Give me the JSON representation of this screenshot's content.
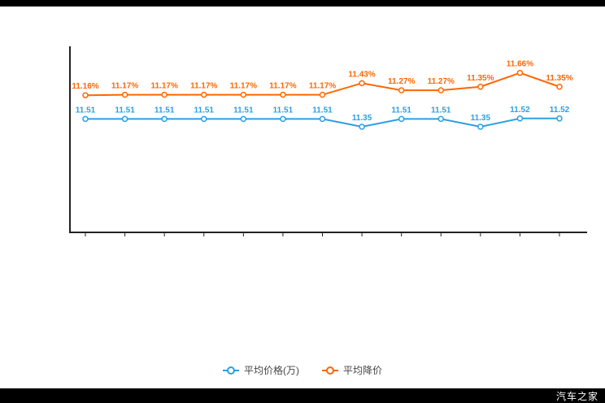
{
  "watermark": "汽车之家",
  "legend": [
    {
      "label": "平均价格(万)",
      "color": "#2B9FE3"
    },
    {
      "label": "平均降价",
      "color": "#FF6600"
    }
  ],
  "chart_data": {
    "type": "line",
    "title": "",
    "xlabel": "",
    "ylabel": "",
    "grid": false,
    "legend_position": "bottom",
    "x_axis_tick_labels_visible": false,
    "y_axis_tick_labels_visible": false,
    "categories": [
      "",
      "",
      "",
      "",
      "",
      "",
      "",
      "",
      "",
      "",
      "",
      "",
      ""
    ],
    "series": [
      {
        "name": "平均价格(万)",
        "color": "#2B9FE3",
        "values": [
          11.51,
          11.51,
          11.51,
          11.51,
          11.51,
          11.51,
          11.51,
          11.35,
          11.51,
          11.51,
          11.35,
          11.52,
          11.52
        ],
        "labels": [
          "11.51",
          "11.51",
          "11.51",
          "11.51",
          "11.51",
          "11.51",
          "11.51",
          "11.35",
          "11.51",
          "11.51",
          "11.35",
          "11.52",
          "11.52"
        ]
      },
      {
        "name": "平均降价",
        "color": "#FF6600",
        "values": [
          11.16,
          11.17,
          11.17,
          11.17,
          11.17,
          11.17,
          11.17,
          11.43,
          11.27,
          11.27,
          11.35,
          11.66,
          11.35
        ],
        "labels": [
          "11.16%",
          "11.17%",
          "11.17%",
          "11.17%",
          "11.17%",
          "11.17%",
          "11.17%",
          "11.43%",
          "11.27%",
          "11.27%",
          "11.35%",
          "11.66%",
          "11.35%"
        ]
      }
    ]
  }
}
